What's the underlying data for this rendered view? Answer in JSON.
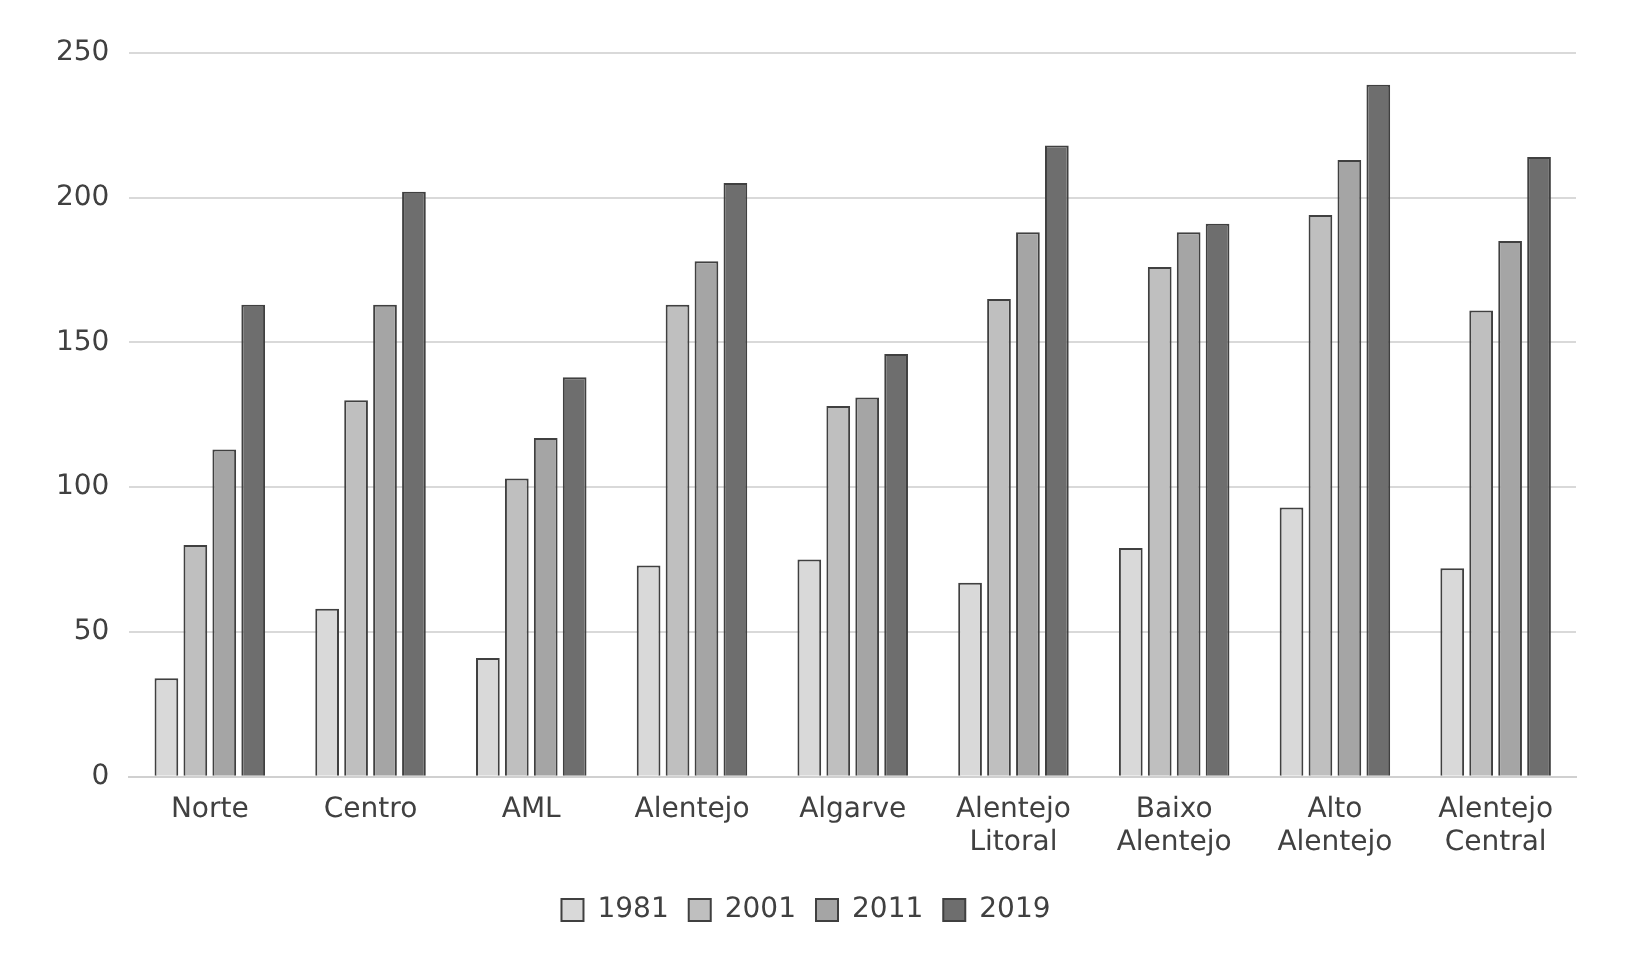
{
  "chart_data": {
    "type": "bar",
    "categories": [
      "Norte",
      "Centro",
      "AML",
      "Alentejo",
      "Algarve",
      "Alentejo Litoral",
      "Baixo Alentejo",
      "Alto Alentejo",
      "Alentejo Central"
    ],
    "series": [
      {
        "name": "1981",
        "color": "#d9d9d9",
        "values": [
          34,
          58,
          41,
          73,
          75,
          67,
          79,
          93,
          72
        ]
      },
      {
        "name": "2001",
        "color": "#bfbfbf",
        "values": [
          80,
          130,
          103,
          163,
          128,
          165,
          176,
          194,
          161
        ]
      },
      {
        "name": "2011",
        "color": "#a5a5a5",
        "values": [
          113,
          163,
          117,
          178,
          131,
          188,
          188,
          213,
          185
        ]
      },
      {
        "name": "2019",
        "color": "#6e6e6e",
        "values": [
          163,
          202,
          138,
          205,
          146,
          218,
          191,
          239,
          214
        ]
      }
    ],
    "ylim": [
      0,
      250
    ],
    "yticks": [
      0,
      50,
      100,
      150,
      200,
      250
    ],
    "grid": "y",
    "legend": "bottom"
  }
}
